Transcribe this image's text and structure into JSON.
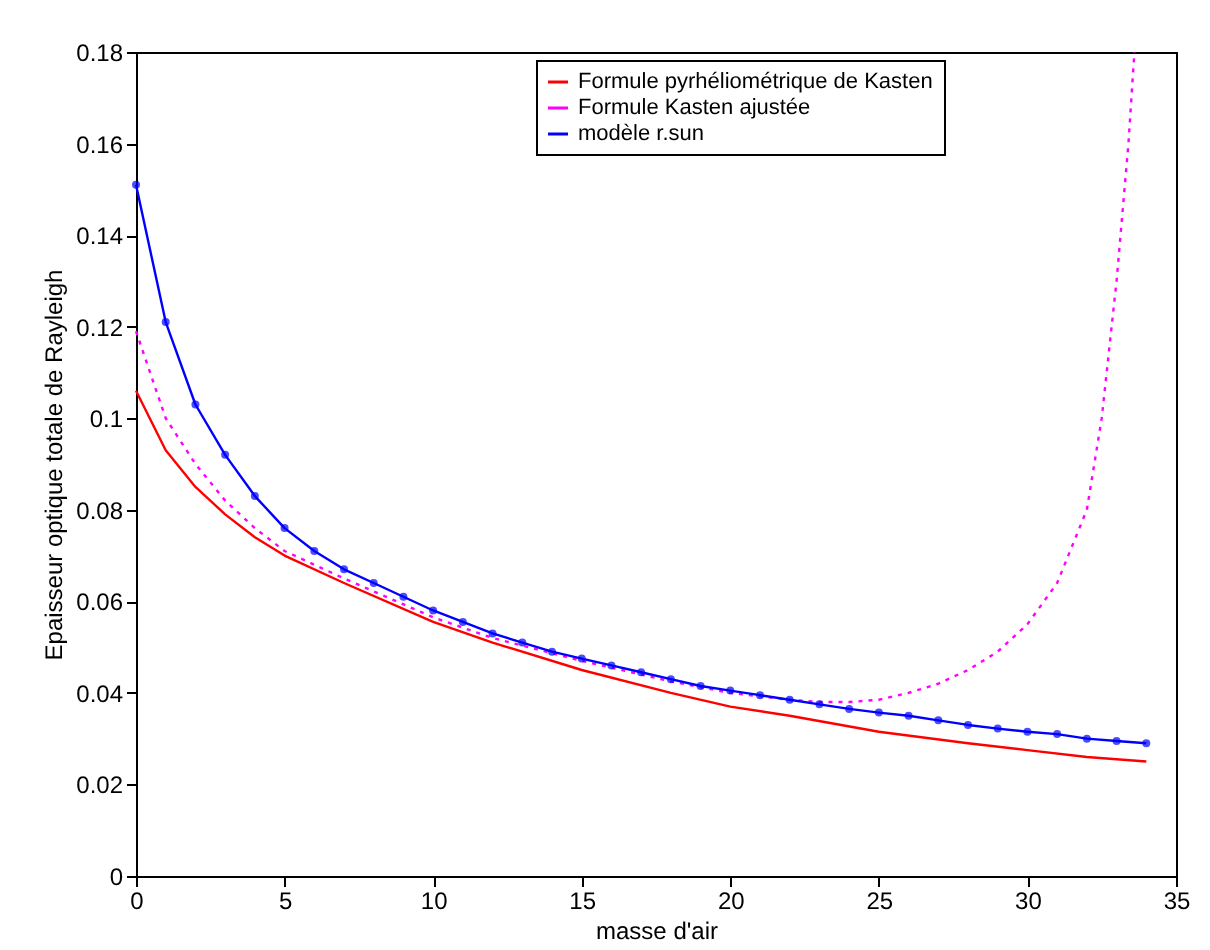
{
  "chart_data": {
    "type": "line",
    "xlabel": "masse d'air",
    "ylabel": "Epaisseur optique totale de Rayleigh",
    "xlim": [
      0,
      35
    ],
    "xticks": [
      0,
      5,
      10,
      15,
      20,
      25,
      30,
      35
    ],
    "ylim": [
      0,
      0.18
    ],
    "yticks": [
      0,
      0.02,
      0.04,
      0.06,
      0.08,
      0.1,
      0.12,
      0.14,
      0.16,
      0.18
    ],
    "grid": false,
    "legend": "top right",
    "series": [
      {
        "name": "Formule pyrhéliométrique de Kasten",
        "color": "#ff0000",
        "line_style": "solid",
        "marker": "none",
        "x": [
          0,
          1,
          2,
          3,
          4,
          5,
          7,
          10,
          12,
          15,
          18,
          20,
          22,
          25,
          28,
          30,
          32,
          34
        ],
        "values": [
          0.106,
          0.093,
          0.085,
          0.079,
          0.074,
          0.07,
          0.064,
          0.0555,
          0.051,
          0.045,
          0.04,
          0.037,
          0.035,
          0.0315,
          0.029,
          0.0275,
          0.026,
          0.025
        ]
      },
      {
        "name": "Formule Kasten ajustée",
        "color": "#ff00ff",
        "line_style": "dotted",
        "marker": "none",
        "x": [
          0,
          1,
          2,
          3,
          4,
          5,
          7,
          10,
          12,
          15,
          18,
          20,
          22,
          23,
          24,
          25,
          26,
          27,
          28,
          29,
          30,
          31,
          32,
          32.5,
          33,
          33.4,
          33.6
        ],
        "values": [
          0.119,
          0.1,
          0.09,
          0.082,
          0.076,
          0.071,
          0.065,
          0.0565,
          0.052,
          0.047,
          0.0425,
          0.04,
          0.0385,
          0.038,
          0.038,
          0.0385,
          0.04,
          0.042,
          0.045,
          0.049,
          0.055,
          0.064,
          0.08,
          0.1,
          0.13,
          0.16,
          0.18
        ]
      },
      {
        "name": "modèle r.sun",
        "color": "#0000ff",
        "line_style": "solid",
        "marker": "circle",
        "x": [
          0,
          1,
          2,
          3,
          4,
          5,
          6,
          7,
          8,
          9,
          10,
          11,
          12,
          13,
          14,
          15,
          16,
          17,
          18,
          19,
          20,
          21,
          22,
          23,
          24,
          25,
          26,
          27,
          28,
          29,
          30,
          31,
          32,
          33,
          34
        ],
        "values": [
          0.151,
          0.121,
          0.103,
          0.092,
          0.083,
          0.076,
          0.071,
          0.067,
          0.064,
          0.061,
          0.058,
          0.0555,
          0.053,
          0.051,
          0.049,
          0.0475,
          0.046,
          0.0445,
          0.043,
          0.0415,
          0.0405,
          0.0395,
          0.0385,
          0.0375,
          0.0365,
          0.0357,
          0.035,
          0.034,
          0.033,
          0.0322,
          0.0315,
          0.031,
          0.03,
          0.0295,
          0.029
        ]
      }
    ]
  }
}
